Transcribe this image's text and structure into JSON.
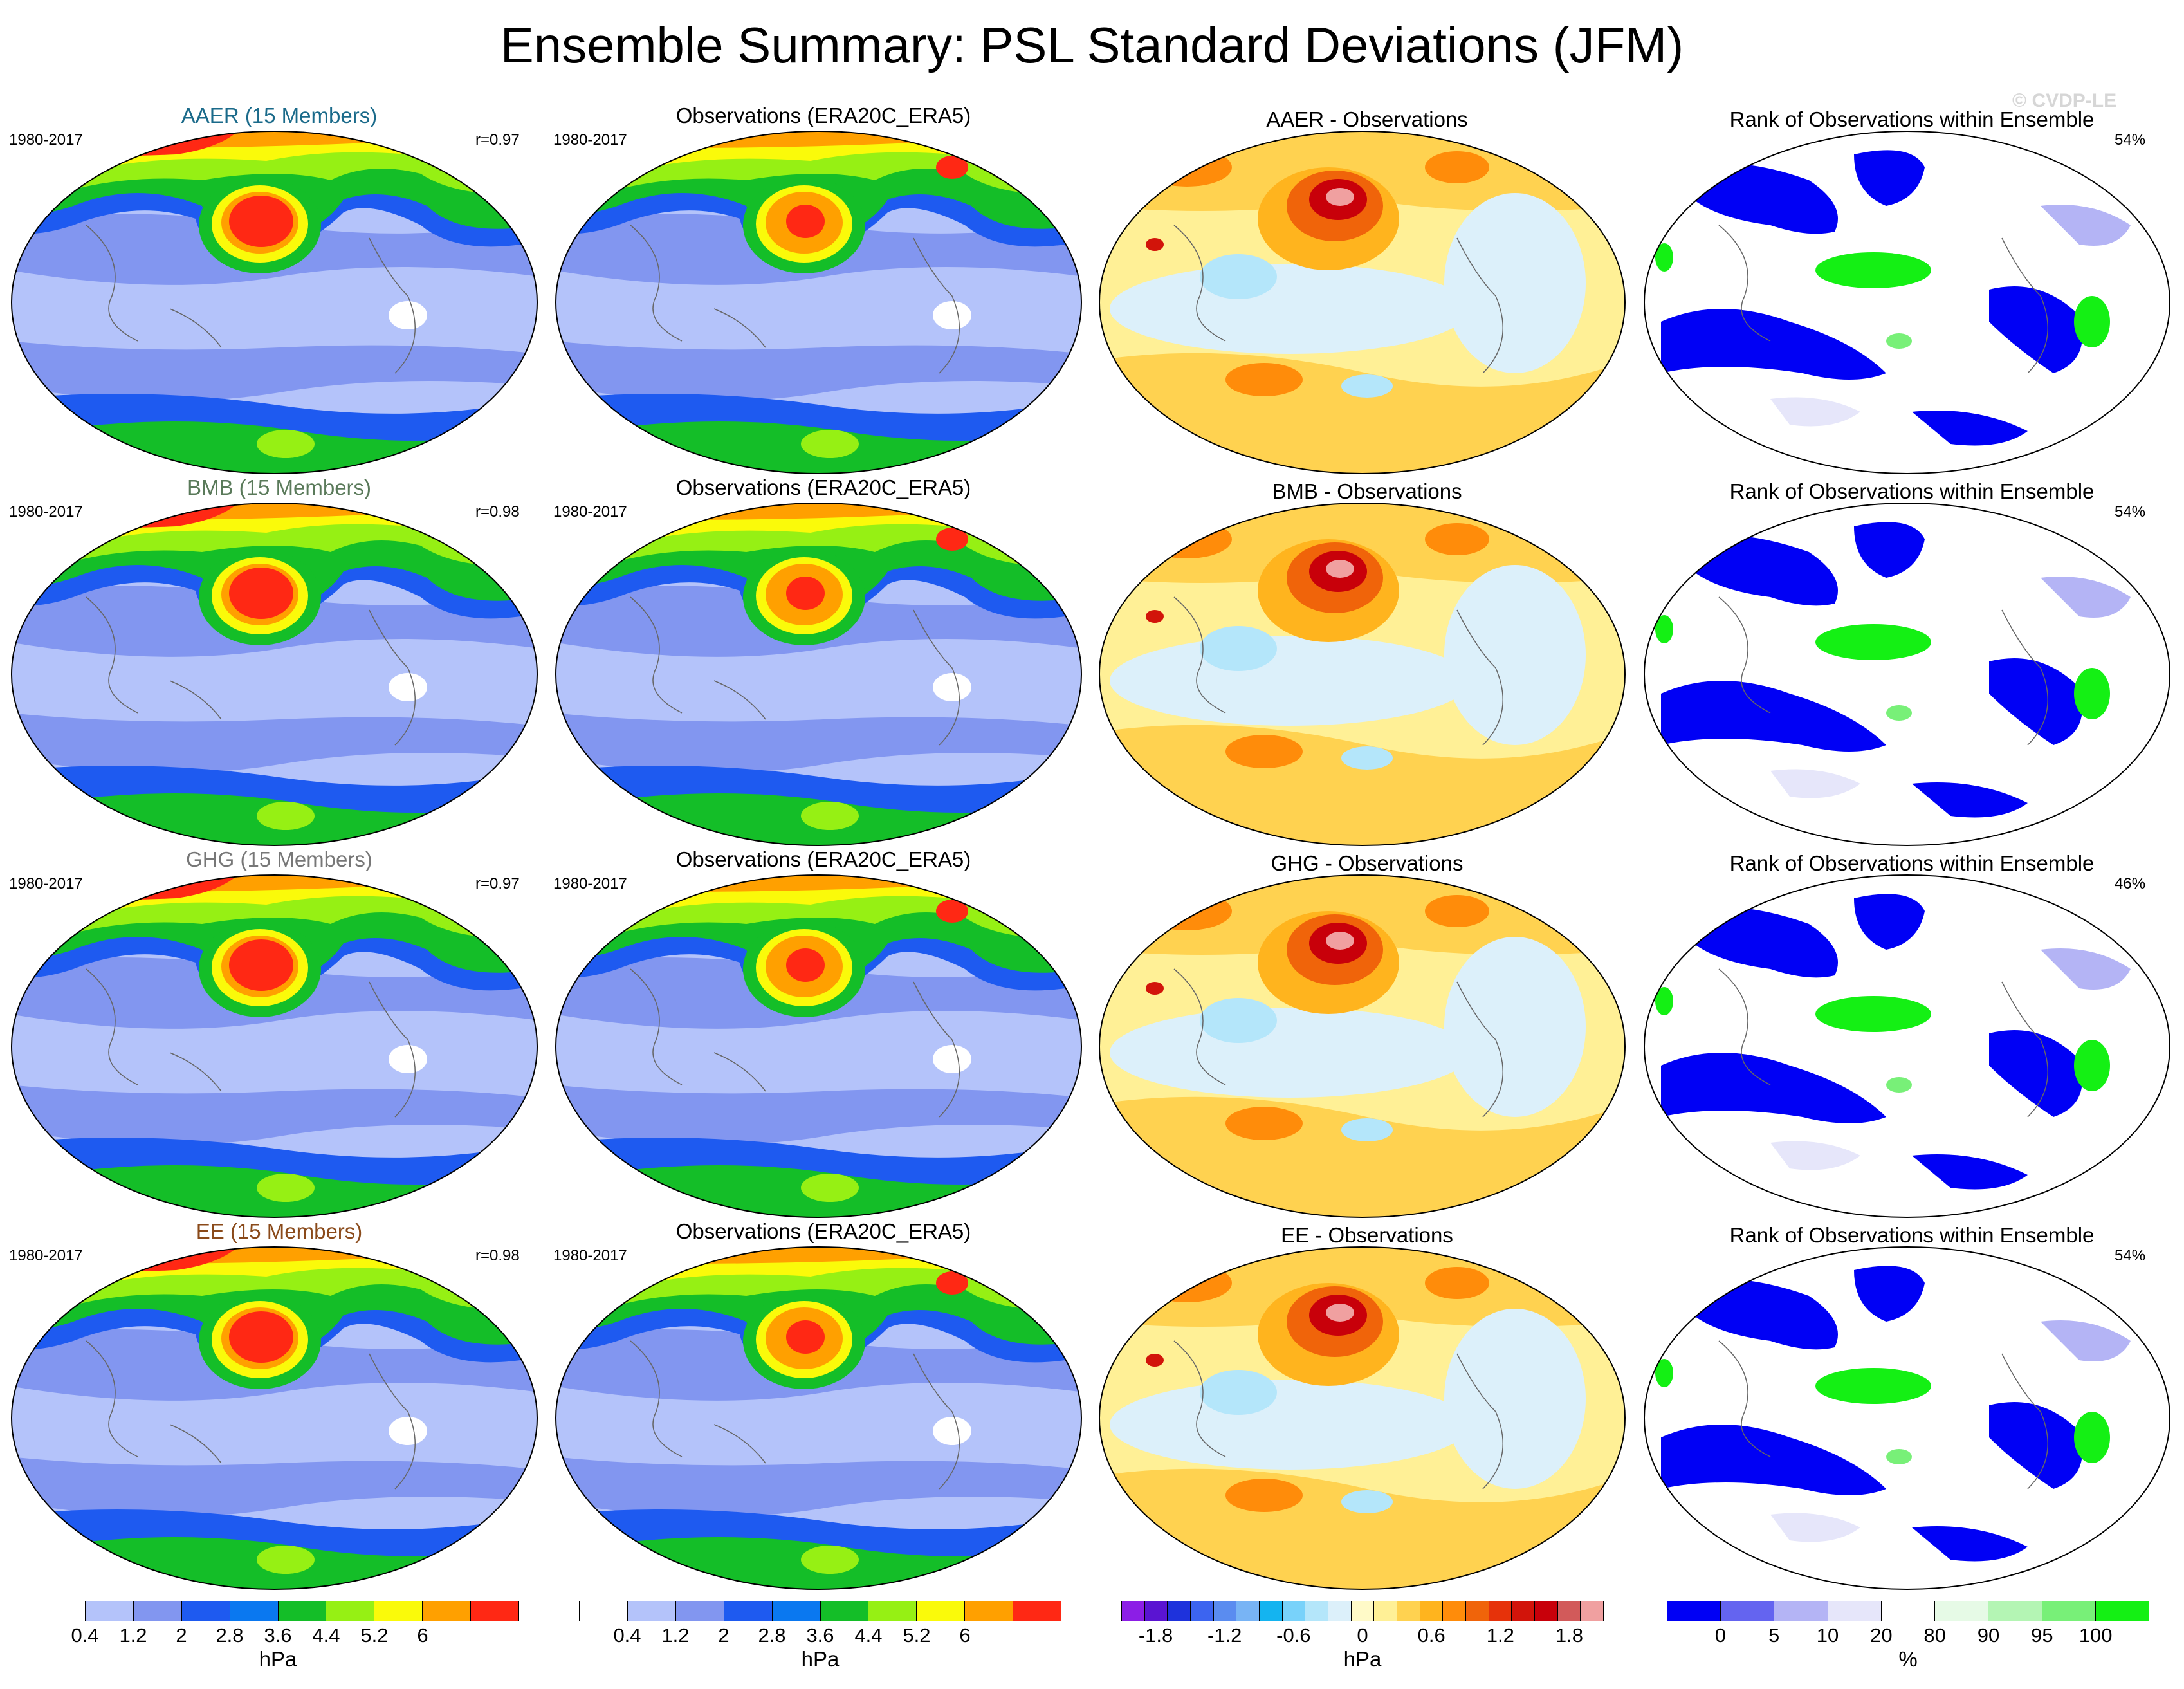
{
  "title": "Ensemble Summary: PSL Standard Deviations (JFM)",
  "watermark": "© CVDP-LE",
  "rows": [
    {
      "ensemble_label": "AAER (15 Members)",
      "label_color": "#1a6a8a",
      "period": "1980-2017",
      "r": "r=0.97",
      "obs_title": "Observations (ERA20C_ERA5)",
      "obs_period": "1980-2017",
      "diff_title": "AAER - Observations",
      "rank_title": "Rank of Observations within Ensemble",
      "rank_pct": "54%"
    },
    {
      "ensemble_label": "BMB (15 Members)",
      "label_color": "#5a7a5a",
      "period": "1980-2017",
      "r": "r=0.98",
      "obs_title": "Observations (ERA20C_ERA5)",
      "obs_period": "1980-2017",
      "diff_title": "BMB - Observations",
      "rank_title": "Rank of Observations within Ensemble",
      "rank_pct": "54%"
    },
    {
      "ensemble_label": "GHG (15 Members)",
      "label_color": "#777777",
      "period": "1980-2017",
      "r": "r=0.97",
      "obs_title": "Observations (ERA20C_ERA5)",
      "obs_period": "1980-2017",
      "diff_title": "GHG - Observations",
      "rank_title": "Rank of Observations within Ensemble",
      "rank_pct": "46%"
    },
    {
      "ensemble_label": "EE (15 Members)",
      "label_color": "#8a4a1a",
      "period": "1980-2017",
      "r": "r=0.98",
      "obs_title": "Observations (ERA20C_ERA5)",
      "obs_period": "1980-2017",
      "diff_title": "EE - Observations",
      "rank_title": "Rank of Observations within Ensemble",
      "rank_pct": "54%"
    }
  ],
  "colorbars": {
    "std": {
      "unit": "hPa",
      "ticks": [
        "0.4",
        "1.2",
        "2",
        "2.8",
        "3.6",
        "4.4",
        "5.2",
        "6"
      ],
      "colors": [
        "#ffffff",
        "#b4c3fa",
        "#8296f0",
        "#1e5af0",
        "#0a78f0",
        "#14be28",
        "#96f014",
        "#fafa0a",
        "#ffa000",
        "#ff2814"
      ]
    },
    "diff": {
      "unit": "hPa",
      "ticks": [
        "-1.8",
        "-1.2",
        "-0.6",
        "0",
        "0.6",
        "1.2",
        "1.8"
      ],
      "colors": [
        "#8c1ee6",
        "#5a14d2",
        "#1e32dc",
        "#3c64f0",
        "#5a8cf0",
        "#78b4f5",
        "#14b4f0",
        "#78d2fa",
        "#b4e6fa",
        "#dcf0fa",
        "#fffac8",
        "#fff096",
        "#ffd250",
        "#ffb41e",
        "#ff8c0a",
        "#f0640a",
        "#e6320a",
        "#d2140a",
        "#c8000a",
        "#d25a5a",
        "#f0a0a0"
      ]
    },
    "rank": {
      "unit": "%",
      "ticks": [
        "0",
        "5",
        "10",
        "20",
        "80",
        "90",
        "95",
        "100"
      ],
      "colors": [
        "#0000f5",
        "#6464f0",
        "#b4b4f5",
        "#e6e6fa",
        "#ffffff",
        "#e6fae6",
        "#b4f5b4",
        "#78f078",
        "#14f014"
      ]
    }
  }
}
